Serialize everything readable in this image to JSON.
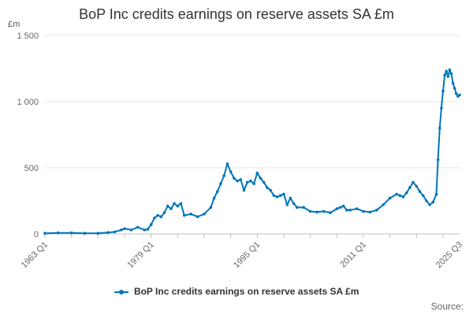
{
  "chart_data": {
    "type": "line",
    "title": "BoP Inc credits earnings on reserve assets SA £m",
    "ylabel": "£m",
    "xlabel": "",
    "ylim": [
      0,
      1500
    ],
    "yticks": [
      0,
      500,
      1000,
      1500
    ],
    "ytick_labels": [
      "0",
      "500",
      "1 000",
      "1 500"
    ],
    "xtick_labels": [
      "1963 Q1",
      "1979 Q1",
      "1995 Q1",
      "2011 Q1",
      "2025 Q3"
    ],
    "xtick_years": [
      1963.0,
      1979.0,
      1995.0,
      2011.0,
      2025.5
    ],
    "grid": true,
    "legend_position": "bottom",
    "series": [
      {
        "name": "BoP Inc credits earnings on reserve assets SA £m",
        "color": "#0075b9",
        "x": [
          1963.0,
          1965.0,
          1967.0,
          1969.0,
          1971.0,
          1972.5,
          1973.5,
          1974.5,
          1975.0,
          1976.0,
          1977.0,
          1978.0,
          1978.5,
          1979.0,
          1979.5,
          1980.0,
          1980.5,
          1981.0,
          1981.5,
          1982.0,
          1982.5,
          1983.0,
          1983.5,
          1984.0,
          1985.0,
          1986.0,
          1987.0,
          1988.0,
          1988.5,
          1989.0,
          1989.5,
          1990.0,
          1990.5,
          1991.0,
          1991.5,
          1992.0,
          1992.5,
          1993.0,
          1993.5,
          1994.0,
          1994.5,
          1995.0,
          1995.5,
          1996.0,
          1996.5,
          1997.0,
          1997.5,
          1998.0,
          1998.5,
          1999.0,
          1999.5,
          2000.0,
          2000.5,
          2001.0,
          2002.0,
          2003.0,
          2004.0,
          2005.0,
          2006.0,
          2007.0,
          2007.5,
          2008.0,
          2008.5,
          2009.0,
          2010.0,
          2011.0,
          2012.0,
          2013.0,
          2014.0,
          2015.0,
          2016.0,
          2016.5,
          2017.0,
          2017.5,
          2018.0,
          2018.5,
          2019.0,
          2019.5,
          2020.0,
          2020.5,
          2021.0,
          2021.5,
          2022.0,
          2022.25,
          2022.5,
          2022.75,
          2023.0,
          2023.25,
          2023.5,
          2023.75,
          2024.0,
          2024.25,
          2024.5,
          2024.75,
          2025.0,
          2025.25,
          2025.5
        ],
        "values": [
          5,
          8,
          8,
          5,
          5,
          10,
          15,
          30,
          40,
          30,
          50,
          30,
          35,
          70,
          120,
          140,
          130,
          160,
          210,
          190,
          230,
          210,
          230,
          140,
          150,
          130,
          150,
          200,
          270,
          320,
          380,
          440,
          530,
          470,
          420,
          400,
          410,
          330,
          390,
          400,
          380,
          460,
          420,
          390,
          350,
          330,
          290,
          280,
          290,
          300,
          220,
          270,
          230,
          200,
          200,
          170,
          165,
          170,
          160,
          190,
          200,
          210,
          180,
          180,
          190,
          170,
          165,
          180,
          220,
          270,
          300,
          290,
          280,
          310,
          350,
          390,
          360,
          320,
          290,
          250,
          220,
          240,
          300,
          560,
          800,
          950,
          1080,
          1200,
          1230,
          1190,
          1240,
          1210,
          1140,
          1100,
          1060,
          1040,
          1050
        ]
      }
    ]
  },
  "source_label": "Source:"
}
